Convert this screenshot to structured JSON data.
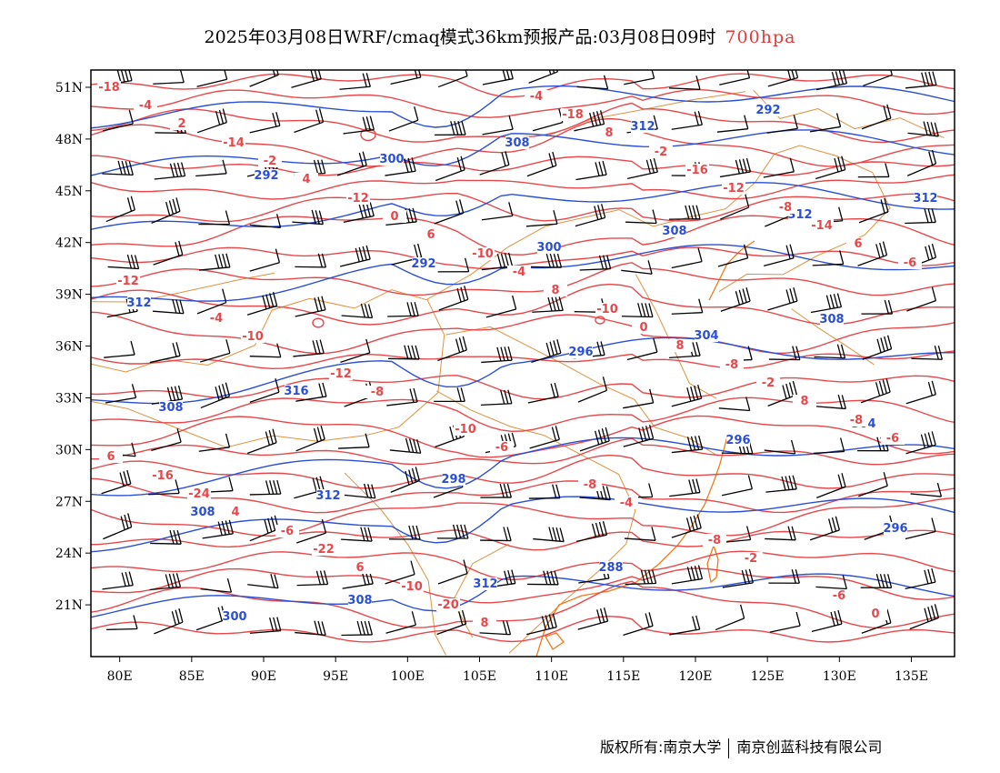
{
  "header": {
    "title": "2025年03月08日WRF/cmaq模式36km预报产品:03月08日09时",
    "level": "700hpa"
  },
  "map": {
    "lon_range": [
      78,
      138
    ],
    "lat_range": [
      18,
      52
    ],
    "lat_labels": [
      "51N",
      "48N",
      "45N",
      "42N",
      "39N",
      "36N",
      "33N",
      "30N",
      "27N",
      "24N",
      "21N"
    ],
    "lon_labels": [
      "80E",
      "85E",
      "90E",
      "95E",
      "100E",
      "105E",
      "110E",
      "115E",
      "120E",
      "125E",
      "130E",
      "135E"
    ],
    "colors": {
      "temperature": "#e8474a",
      "geopotential": "#2a4fd6",
      "boundaries": "#e0913c",
      "coast": "#f07a1a",
      "wind": "#000000"
    },
    "geopotential_labels": [
      "292",
      "292",
      "292",
      "296",
      "296",
      "296",
      "300",
      "300",
      "300",
      "304",
      "304",
      "308",
      "308",
      "308",
      "308",
      "308",
      "308",
      "312",
      "312",
      "312",
      "312",
      "312",
      "316",
      "298",
      "288",
      "292",
      "312"
    ],
    "temperature_labels": [
      "-18",
      "-14",
      "-12",
      "-10",
      "-10",
      "-8",
      "-8",
      "-16",
      "-6",
      "-10",
      "-4",
      "-2",
      "-8",
      "-6",
      "-4",
      "-12",
      "-10",
      "-8",
      "-8",
      "-6",
      "-4",
      "-2",
      "0",
      "-4",
      "0",
      "-2",
      "-6",
      "-24",
      "-22",
      "-20",
      "-18",
      "-16",
      "-14",
      "-12",
      "-10",
      "-8",
      "-6",
      "-4",
      "-2",
      "0",
      "2",
      "4",
      "6",
      "8",
      "8",
      "8",
      "6",
      "4",
      "6",
      "8",
      "8",
      "-12",
      "6"
    ]
  },
  "footer": {
    "copyright": "版权所有:南京大学",
    "company": "南京创蓝科技有限公司"
  }
}
